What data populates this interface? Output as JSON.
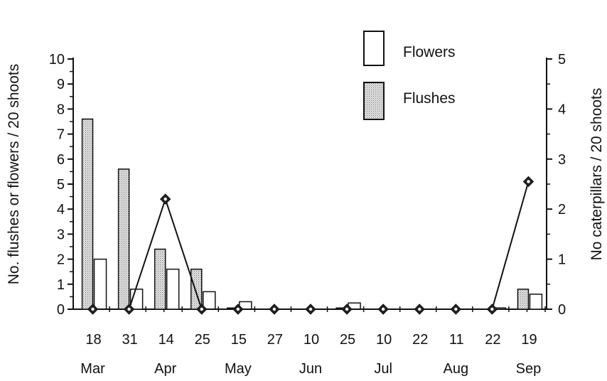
{
  "chart_data": {
    "type": "bar",
    "categories": [
      "18",
      "31",
      "14",
      "25",
      "15",
      "27",
      "10",
      "25",
      "10",
      "22",
      "11",
      "22",
      "19"
    ],
    "months": [
      {
        "label": "Mar",
        "from": 0,
        "to": 0
      },
      {
        "label": "Apr",
        "from": 2,
        "to": 2
      },
      {
        "label": "May",
        "from": 4,
        "to": 4
      },
      {
        "label": "Jun",
        "from": 6,
        "to": 6
      },
      {
        "label": "Jul",
        "from": 7.5,
        "to": 8.5
      },
      {
        "label": "Aug",
        "from": 10,
        "to": 10
      },
      {
        "label": "Sep",
        "from": 12,
        "to": 12
      }
    ],
    "ylabel_left": "No. flushes or flowers / 20 shoots",
    "ylabel_right": "No caterpillars / 20 shoots",
    "ylim_left": [
      0,
      10
    ],
    "ylim_right": [
      0,
      5
    ],
    "yticks_left": [
      0,
      1,
      2,
      3,
      4,
      5,
      6,
      7,
      8,
      9,
      10
    ],
    "yticks_right": [
      0,
      1,
      2,
      3,
      4,
      5
    ],
    "legend_position": "top-right",
    "series": [
      {
        "name": "Flushes",
        "kind": "bar",
        "axis": "left",
        "fill": "#d8d8d8",
        "values": [
          7.6,
          5.6,
          2.4,
          1.6,
          0.05,
          0,
          0,
          0.05,
          0,
          0,
          0,
          0,
          0.8
        ]
      },
      {
        "name": "Flowers",
        "kind": "bar",
        "axis": "left",
        "fill": "#ffffff",
        "values": [
          2.0,
          0.8,
          1.6,
          0.7,
          0.3,
          0,
          0,
          0.25,
          0,
          0,
          0,
          0.05,
          0.6
        ]
      },
      {
        "name": "",
        "kind": "line",
        "axis": "right",
        "marker": "diamond",
        "values": [
          0,
          0,
          2.2,
          0,
          0,
          0,
          0,
          0,
          0,
          0,
          0,
          0,
          2.55
        ]
      }
    ]
  }
}
